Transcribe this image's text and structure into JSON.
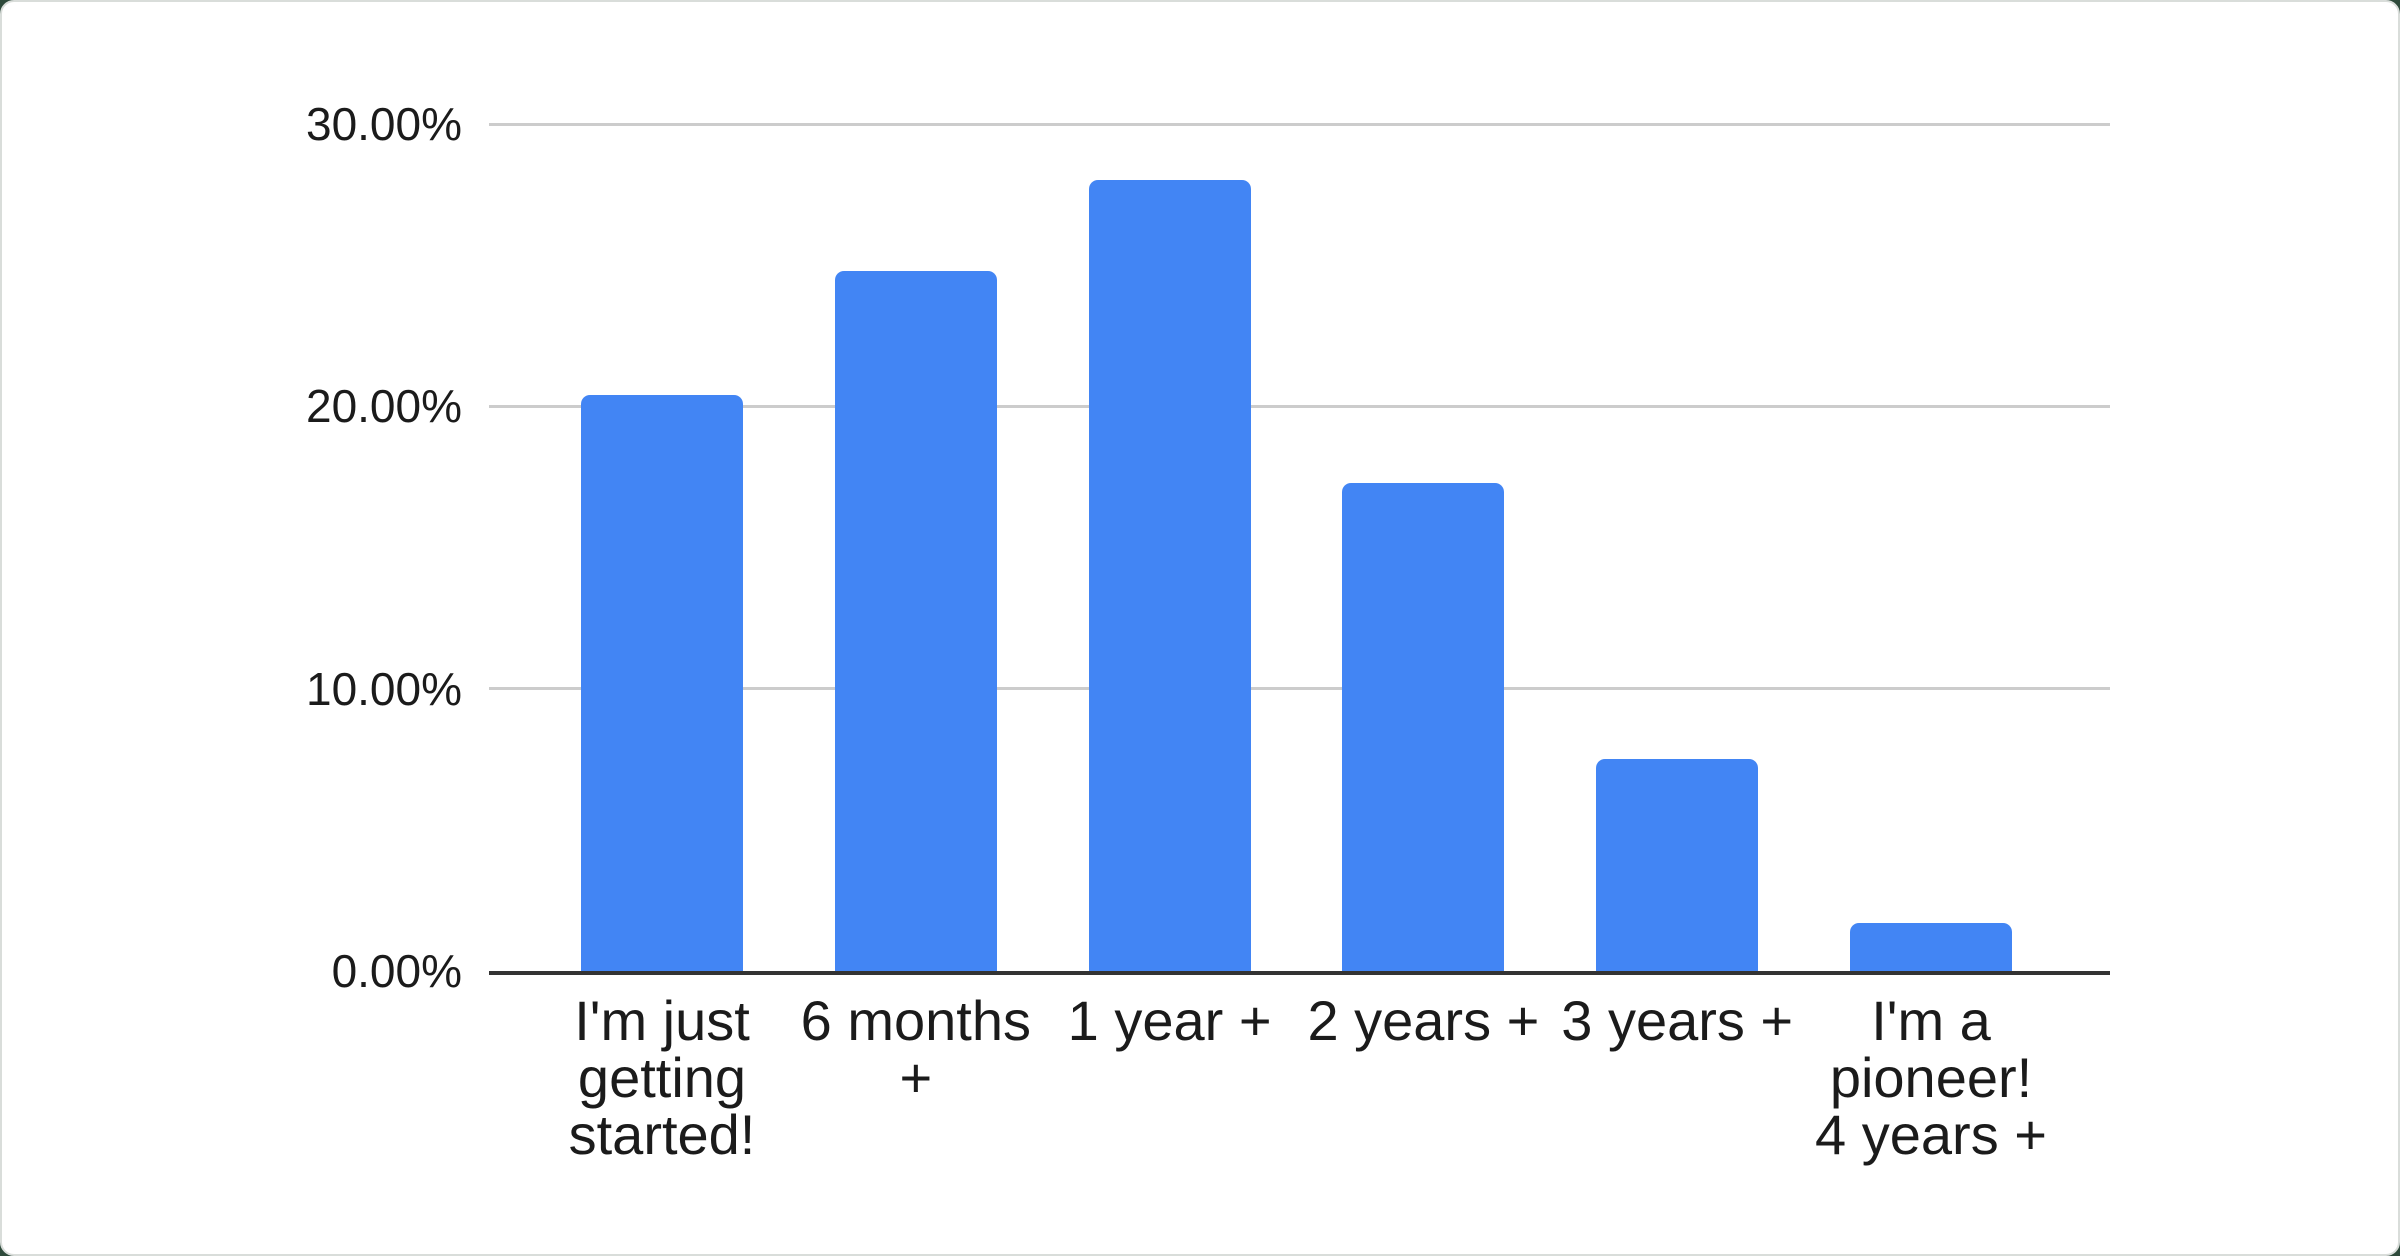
{
  "colors": {
    "bar": "#4285f4",
    "gridline": "#cccccc",
    "axis_line": "#333333",
    "label_text": "#1b1b1b",
    "card_background": "#ffffff",
    "card_border": "#d9ddda",
    "page_background": "#2e4a3b"
  },
  "chart_data": {
    "type": "bar",
    "title": "",
    "xlabel": "",
    "ylabel": "",
    "categories": [
      "I'm just getting started!",
      "6 months +",
      "1 year +",
      "2 years +",
      "3 years +",
      "I'm a pioneer! 4 years +"
    ],
    "category_display": [
      "I'm just\ngetting\nstarted!",
      "6 months\n+",
      "1 year +",
      "2 years +",
      "3 years +",
      "I'm a\npioneer!\n4 years +"
    ],
    "values": [
      20.4,
      24.8,
      28.0,
      17.3,
      7.5,
      1.7
    ],
    "value_unit": "%",
    "ylim": [
      0,
      30
    ],
    "y_tick_values": [
      0,
      10,
      20,
      30
    ],
    "y_ticks": [
      "0.00%",
      "10.00%",
      "20.00%",
      "30.00%"
    ],
    "grid": true,
    "legend_position": "none"
  }
}
